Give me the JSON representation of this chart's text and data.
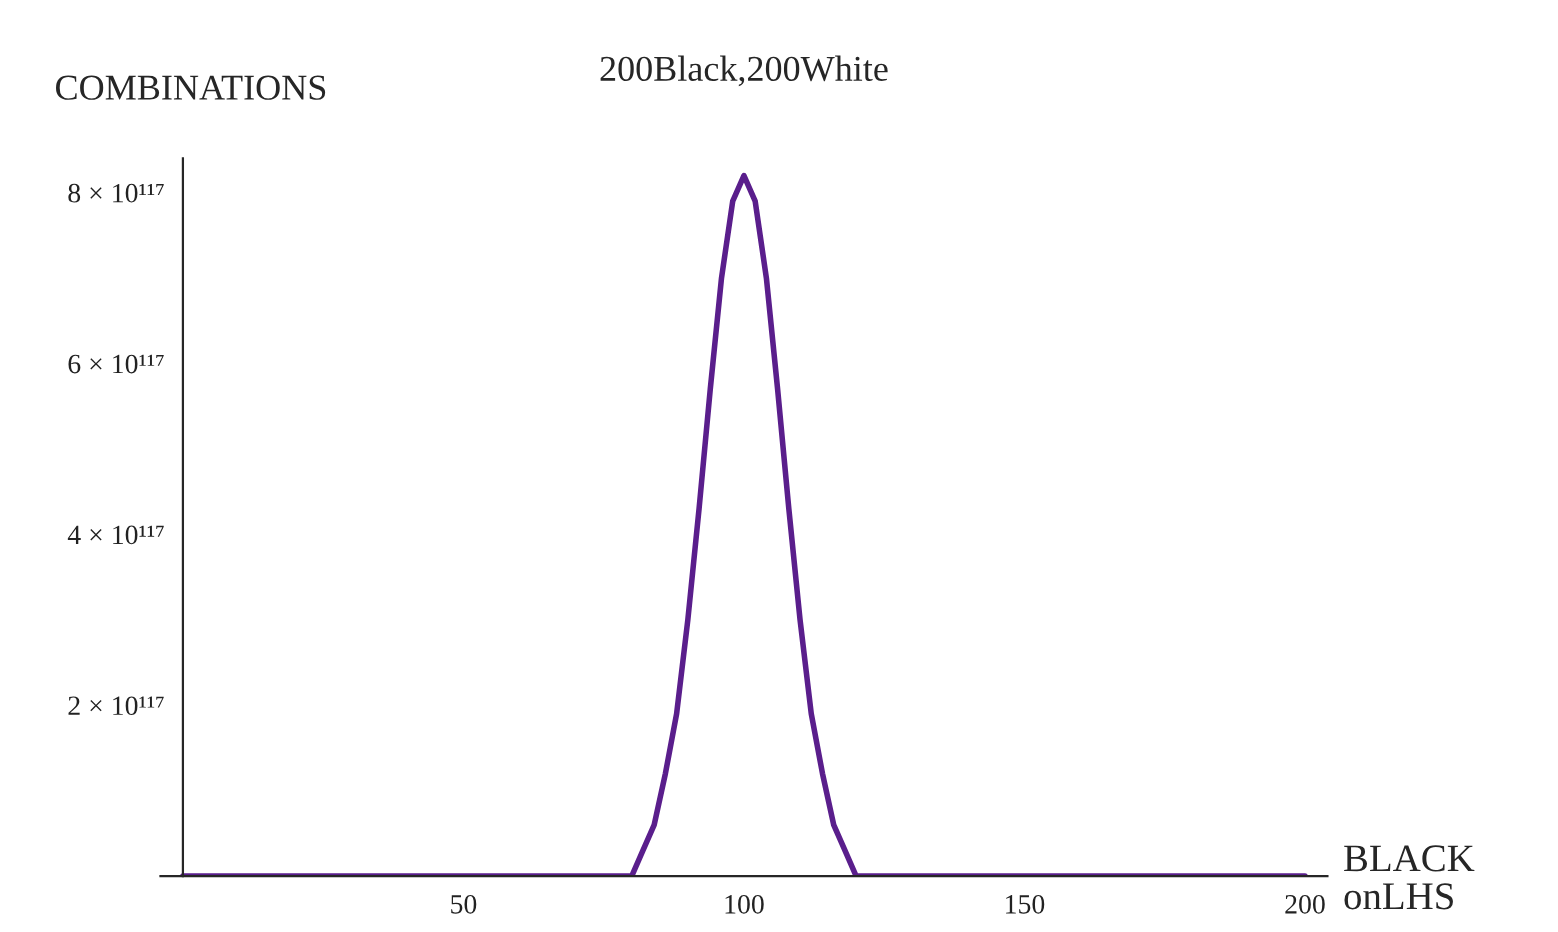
{
  "chart_data": {
    "type": "line",
    "title": "200Black,200White",
    "ylabel": "COMBINATIONS",
    "xlabel": "BLACK\nonLHS",
    "x": [
      0,
      80,
      82,
      84,
      86,
      88,
      90,
      92,
      94,
      96,
      98,
      100,
      102,
      104,
      106,
      108,
      110,
      112,
      114,
      116,
      118,
      120,
      200
    ],
    "series": [
      {
        "color": "#5a1e8c",
        "values": [
          0,
          0,
          3e+116,
          6e+116,
          1.2e+117,
          1.9e+117,
          3e+117,
          4.3e+117,
          5.7e+117,
          7e+117,
          7.9e+117,
          8.2e+117,
          7.9e+117,
          7e+117,
          5.7e+117,
          4.3e+117,
          3e+117,
          1.9e+117,
          1.2e+117,
          6e+116,
          3e+116,
          0,
          0
        ]
      }
    ],
    "xlim": [
      -4,
      204
    ],
    "ylim": [
      0,
      8.4e+117
    ],
    "xticks": [
      50,
      100,
      150,
      200
    ],
    "yticks": [
      {
        "value": 2e+117,
        "label": "2 × 10¹¹⁷"
      },
      {
        "value": 4e+117,
        "label": "4 × 10¹¹⁷"
      },
      {
        "value": 6e+117,
        "label": "6 × 10¹¹⁷"
      },
      {
        "value": 8e+117,
        "label": "8 × 10¹¹⁷"
      }
    ],
    "grid": false,
    "legend": false
  }
}
